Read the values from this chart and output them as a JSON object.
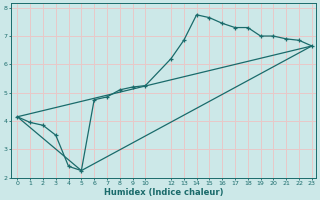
{
  "xlabel": "Humidex (Indice chaleur)",
  "ylabel": "",
  "background_color": "#cce8e8",
  "grid_color": "#e8c8c8",
  "line_color": "#1a6b6b",
  "xlim": [
    -0.5,
    23.3
  ],
  "ylim": [
    2,
    8.15
  ],
  "xticks": [
    0,
    1,
    2,
    3,
    4,
    5,
    6,
    7,
    8,
    9,
    10,
    12,
    13,
    14,
    15,
    16,
    17,
    18,
    19,
    20,
    21,
    22,
    23
  ],
  "yticks": [
    2,
    3,
    4,
    5,
    6,
    7,
    8
  ],
  "line1_x": [
    0,
    1,
    2,
    3,
    4,
    5,
    6,
    7,
    8,
    9,
    10,
    12,
    13,
    14,
    15,
    16,
    17,
    18,
    19,
    20,
    21,
    22,
    23
  ],
  "line1_y": [
    4.15,
    3.95,
    3.85,
    3.5,
    2.4,
    2.25,
    4.75,
    4.85,
    5.1,
    5.2,
    5.25,
    6.2,
    6.85,
    7.75,
    7.65,
    7.45,
    7.3,
    7.3,
    7.0,
    7.0,
    6.9,
    6.85,
    6.65
  ],
  "line2_x": [
    0,
    23
  ],
  "line2_y": [
    4.15,
    6.65
  ],
  "line3_x": [
    0,
    5,
    23
  ],
  "line3_y": [
    4.15,
    2.25,
    6.65
  ]
}
